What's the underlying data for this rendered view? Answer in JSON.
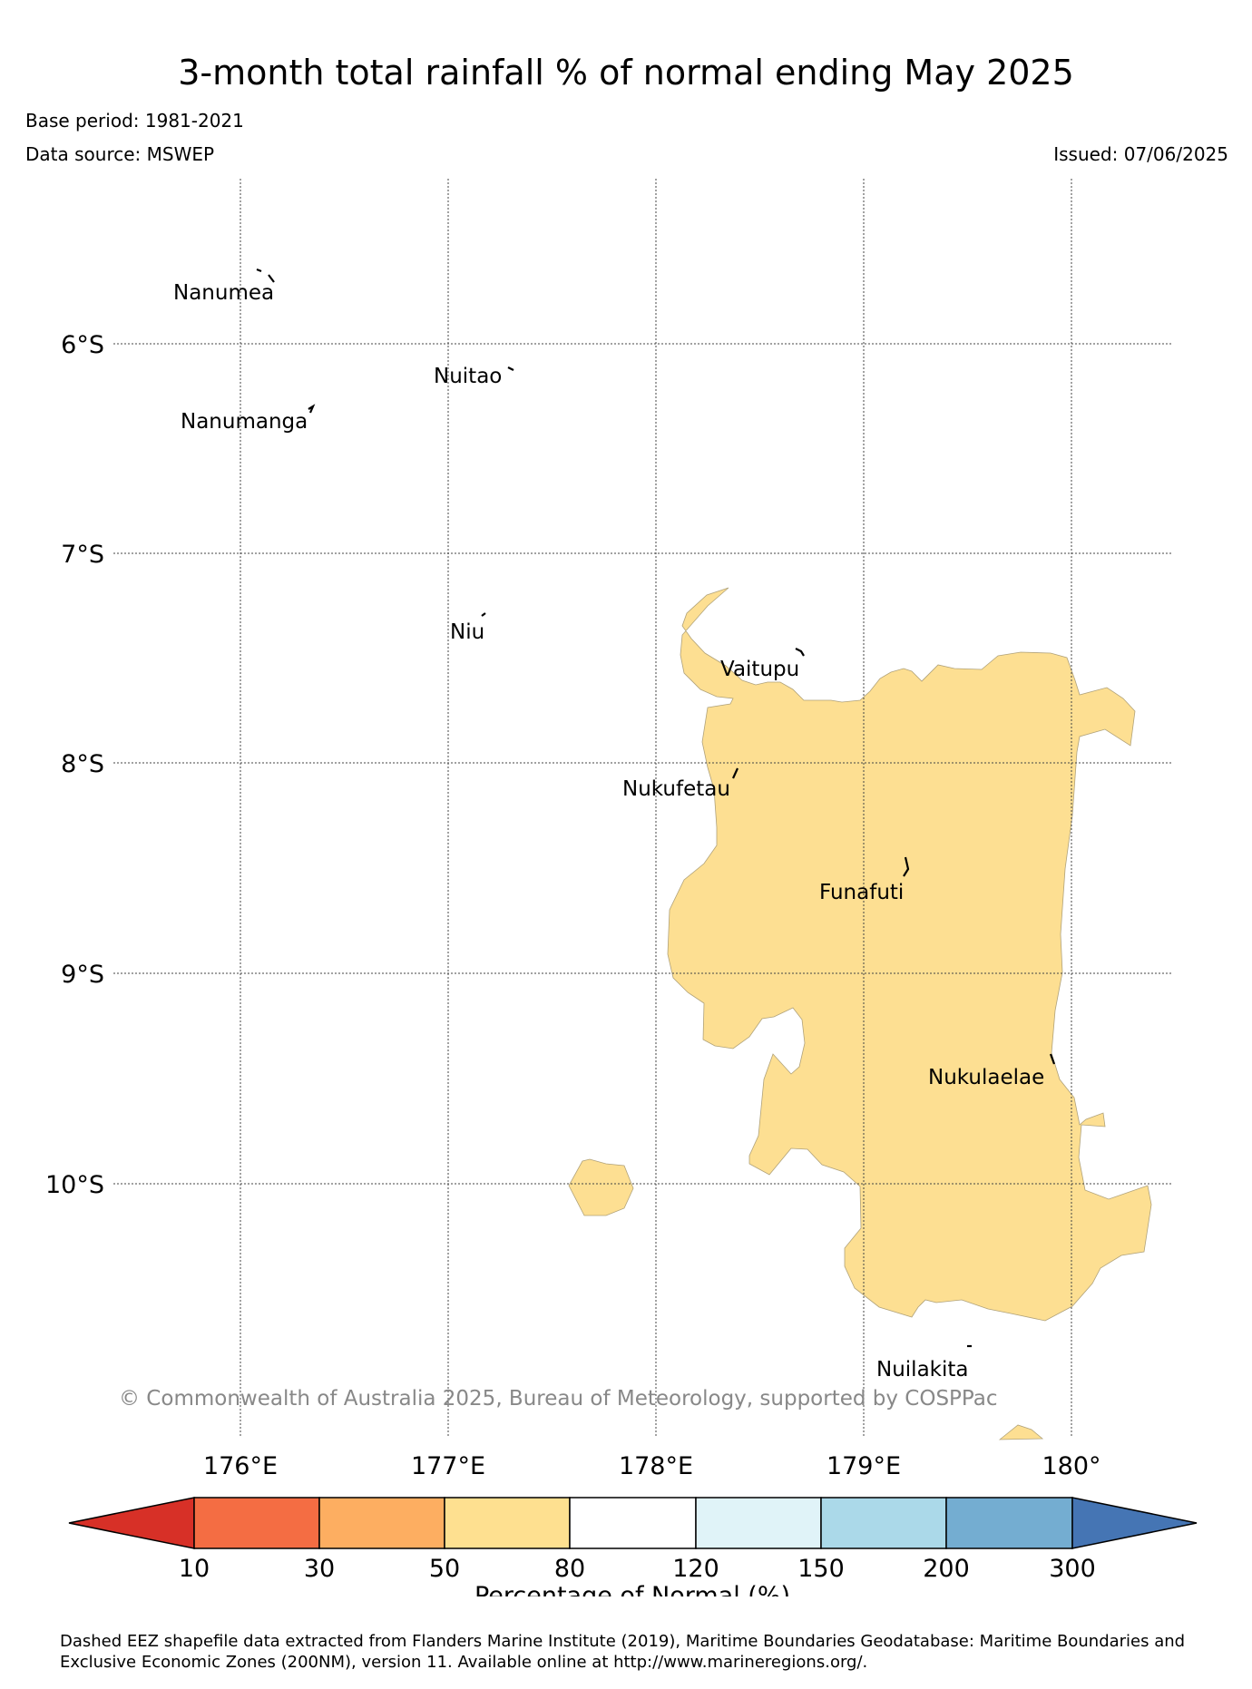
{
  "header": {
    "title": "3-month total rainfall % of normal ending May 2025",
    "base_period": "Base period: 1981-2021",
    "data_source": "Data source: MSWEP",
    "issued": "Issued: 07/06/2025"
  },
  "map": {
    "longitude_labels": [
      "176°E",
      "177°E",
      "178°E",
      "179°E",
      "180°"
    ],
    "latitude_labels": [
      "6°S",
      "7°S",
      "8°S",
      "9°S",
      "10°S"
    ],
    "islands": [
      {
        "name": "Nanumea"
      },
      {
        "name": "Nuitao"
      },
      {
        "name": "Nanumanga"
      },
      {
        "name": "Niu"
      },
      {
        "name": "Vaitupu"
      },
      {
        "name": "Nukufetau"
      },
      {
        "name": "Funafuti"
      },
      {
        "name": "Nukulaelae"
      },
      {
        "name": "Nuilakita"
      }
    ],
    "shaded_category": "50-80",
    "shade_color": "#fddf92",
    "copyright": "© Commonwealth of Australia 2025, Bureau of Meteorology, supported by COSPPac"
  },
  "legend": {
    "title": "Percentage of Normal (%)",
    "tick_labels": [
      "10",
      "30",
      "50",
      "80",
      "120",
      "150",
      "200",
      "300"
    ],
    "colors": [
      "#d73027",
      "#f46d43",
      "#fdae61",
      "#fee090",
      "#ffffff",
      "#e0f3f8",
      "#abd9e9",
      "#74add1",
      "#4575b4"
    ]
  },
  "footer": {
    "note": "Dashed EEZ shapefile data extracted from Flanders Marine Institute (2019), Maritime Boundaries Geodatabase: Maritime Boundaries and Exclusive Economic Zones (200NM), version 11. Available online at http://www.marineregions.org/."
  }
}
